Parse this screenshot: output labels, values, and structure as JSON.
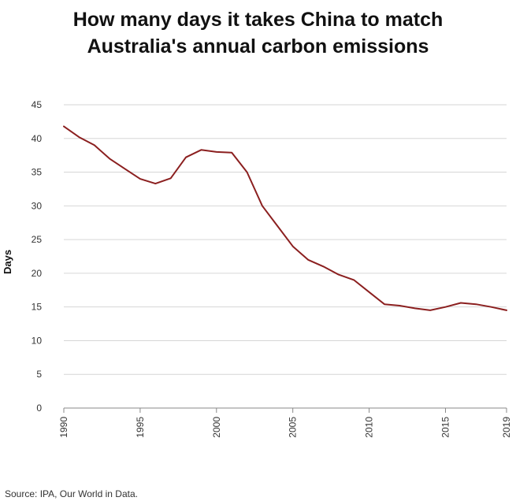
{
  "chart_data": {
    "type": "line",
    "title_lines": [
      "How many days it takes China to match",
      "Australia's annual carbon emissions"
    ],
    "xlabel": "",
    "ylabel": "Days",
    "xlim": [
      1990,
      2019
    ],
    "ylim": [
      0,
      45
    ],
    "x_ticks": [
      "1990",
      "1995",
      "2000",
      "2005",
      "2010",
      "2015",
      "2019"
    ],
    "y_ticks": [
      "0",
      "5",
      "10",
      "15",
      "20",
      "25",
      "30",
      "35",
      "40",
      "45"
    ],
    "grid": "horizontal",
    "legend": "none",
    "series": [
      {
        "color": "#8b1f1f",
        "x": [
          1990,
          1991,
          1992,
          1993,
          1994,
          1995,
          1996,
          1997,
          1998,
          1999,
          2000,
          2001,
          2002,
          2003,
          2004,
          2005,
          2006,
          2007,
          2008,
          2009,
          2010,
          2011,
          2012,
          2013,
          2014,
          2015,
          2016,
          2017,
          2018,
          2019
        ],
        "y": [
          41.8,
          40.2,
          39.0,
          37.0,
          35.5,
          34.0,
          33.3,
          34.1,
          37.2,
          38.3,
          38.0,
          37.9,
          35.0,
          30.0,
          27.0,
          24.0,
          22.0,
          21.0,
          19.8,
          19.0,
          17.2,
          15.4,
          15.2,
          14.8,
          14.5,
          15.0,
          15.6,
          15.4,
          15.0,
          14.5
        ]
      }
    ],
    "source": "Source: IPA, Our World in Data."
  }
}
